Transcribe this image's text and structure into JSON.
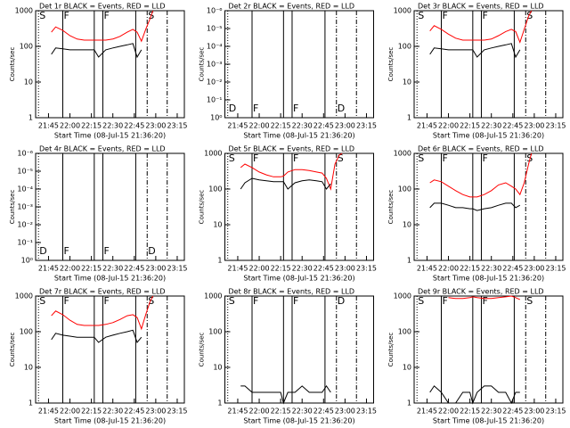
{
  "chart_data": [
    {
      "type": "line",
      "title": "Det 1r BLACK = Events, RED = LLD",
      "xlabel": "Start Time (08-Jul-15 21:36:20)",
      "ylabel": "Counts/sec",
      "log_y": true,
      "x": [
        "21:47",
        "21:50",
        "21:55",
        "22:00",
        "22:05",
        "22:10",
        "22:15",
        "22:17",
        "22:20",
        "22:25",
        "22:30",
        "22:35",
        "22:40",
        "22:44",
        "22:47",
        "22:50",
        "22:53",
        "22:56",
        "22:58"
      ],
      "series": [
        {
          "name": "LLD",
          "color": "#ff0000",
          "values": [
            250,
            350,
            280,
            200,
            160,
            150,
            150,
            150,
            150,
            150,
            160,
            190,
            250,
            300,
            250,
            140,
            300,
            600,
            1000
          ]
        },
        {
          "name": "Events",
          "color": "#000000",
          "values": [
            60,
            90,
            85,
            80,
            80,
            80,
            80,
            80,
            50,
            80,
            90,
            100,
            110,
            120,
            50,
            80,
            null,
            null,
            null
          ]
        }
      ],
      "xlim": [
        "21:36",
        "23:20"
      ],
      "xticks": [
        "21:45",
        "22:00",
        "22:15",
        "22:30",
        "22:45",
        "23:00",
        "23:15"
      ],
      "ylim": [
        1,
        1000
      ],
      "yticks": [
        1,
        10,
        100,
        1000
      ],
      "events": [
        {
          "x": "21:38",
          "style": "dotted",
          "label": "S"
        },
        {
          "x": "21:55",
          "style": "solid",
          "label": "F"
        },
        {
          "x": "22:17",
          "style": "solid"
        },
        {
          "x": "22:23",
          "style": "solid",
          "label": "F"
        },
        {
          "x": "22:46",
          "style": "solid"
        },
        {
          "x": "22:54",
          "style": "dashdot",
          "label": "S"
        },
        {
          "x": "23:08",
          "style": "dashdot"
        }
      ]
    },
    {
      "type": "line",
      "title": "Det 2r BLACK = Events, RED = LLD",
      "xlabel": "Start Time (08-Jul-15 21:36:20)",
      "ylabel": "Counts/sec",
      "log_y": true,
      "x": [],
      "series": [],
      "xlim": [
        "21:36",
        "23:20"
      ],
      "xticks": [
        "21:45",
        "22:00",
        "22:15",
        "22:30",
        "22:45",
        "23:00",
        "23:15"
      ],
      "ylim": [
        1,
        1e-06
      ],
      "yticks": [
        {
          "value": 1,
          "label": "10⁰"
        },
        {
          "value": 0.1,
          "label": "10⁻¹"
        },
        {
          "value": 0.01,
          "label": "10⁻²"
        },
        {
          "value": 0.001,
          "label": "10⁻³"
        },
        {
          "value": 0.0001,
          "label": "10⁻⁴"
        },
        {
          "value": 1e-05,
          "label": "10⁻⁵"
        },
        {
          "value": 1e-06,
          "label": "10⁻⁶"
        }
      ],
      "events": [
        {
          "x": "21:38",
          "style": "dotted",
          "label": "D"
        },
        {
          "x": "21:55",
          "style": "solid",
          "label": "F"
        },
        {
          "x": "22:17",
          "style": "solid"
        },
        {
          "x": "22:23",
          "style": "solid",
          "label": "F"
        },
        {
          "x": "22:46",
          "style": "solid"
        },
        {
          "x": "22:54",
          "style": "dashdot",
          "label": "D"
        },
        {
          "x": "23:08",
          "style": "dashdot"
        }
      ]
    },
    {
      "type": "line",
      "title": "Det 3r BLACK = Events, RED = LLD",
      "xlabel": "Start Time (08-Jul-15 21:36:20)",
      "ylabel": "Counts/sec",
      "log_y": true,
      "x": [
        "21:47",
        "21:50",
        "21:55",
        "22:00",
        "22:05",
        "22:10",
        "22:15",
        "22:17",
        "22:20",
        "22:25",
        "22:30",
        "22:35",
        "22:40",
        "22:44",
        "22:47",
        "22:50",
        "22:53",
        "22:56",
        "22:58"
      ],
      "series": [
        {
          "name": "LLD",
          "color": "#ff0000",
          "values": [
            270,
            380,
            300,
            220,
            170,
            150,
            150,
            150,
            150,
            150,
            160,
            200,
            260,
            300,
            260,
            130,
            300,
            700,
            1000
          ]
        },
        {
          "name": "Events",
          "color": "#000000",
          "values": [
            60,
            90,
            85,
            80,
            80,
            80,
            80,
            80,
            50,
            80,
            90,
            100,
            110,
            120,
            50,
            80,
            null,
            null,
            null
          ]
        }
      ],
      "xlim": [
        "21:36",
        "23:20"
      ],
      "xticks": [
        "21:45",
        "22:00",
        "22:15",
        "22:30",
        "22:45",
        "23:00",
        "23:15"
      ],
      "ylim": [
        1,
        1000
      ],
      "yticks": [
        1,
        10,
        100,
        1000
      ],
      "events": [
        {
          "x": "21:38",
          "style": "dotted",
          "label": "S"
        },
        {
          "x": "21:55",
          "style": "solid",
          "label": "F"
        },
        {
          "x": "22:17",
          "style": "solid"
        },
        {
          "x": "22:23",
          "style": "solid",
          "label": "F"
        },
        {
          "x": "22:46",
          "style": "solid"
        },
        {
          "x": "22:54",
          "style": "dashdot",
          "label": "S"
        },
        {
          "x": "23:08",
          "style": "dashdot"
        }
      ]
    },
    {
      "type": "line",
      "title": "Det 4r BLACK = Events, RED = LLD",
      "xlabel": "Start Time (08-Jul-15 21:36:20)",
      "ylabel": "Counts/sec",
      "log_y": true,
      "x": [],
      "series": [],
      "xlim": [
        "21:36",
        "23:20"
      ],
      "xticks": [
        "21:45",
        "22:00",
        "22:15",
        "22:30",
        "22:45",
        "23:00",
        "23:15"
      ],
      "ylim": [
        1,
        1e-06
      ],
      "yticks": [
        {
          "value": 1,
          "label": "10⁰"
        },
        {
          "value": 0.1,
          "label": "10⁻¹"
        },
        {
          "value": 0.01,
          "label": "10⁻²"
        },
        {
          "value": 0.001,
          "label": "10⁻³"
        },
        {
          "value": 0.0001,
          "label": "10⁻⁴"
        },
        {
          "value": 1e-05,
          "label": "10⁻⁵"
        },
        {
          "value": 1e-06,
          "label": "10⁻⁶"
        }
      ],
      "events": [
        {
          "x": "21:38",
          "style": "dotted",
          "label": "D"
        },
        {
          "x": "21:55",
          "style": "solid",
          "label": "F"
        },
        {
          "x": "22:17",
          "style": "solid"
        },
        {
          "x": "22:23",
          "style": "solid",
          "label": "F"
        },
        {
          "x": "22:46",
          "style": "solid"
        },
        {
          "x": "22:54",
          "style": "dashdot",
          "label": "D"
        },
        {
          "x": "23:08",
          "style": "dashdot"
        }
      ]
    },
    {
      "type": "line",
      "title": "Det 5r BLACK = Events, RED = LLD",
      "xlabel": "Start Time (08-Jul-15 21:36:20)",
      "ylabel": "Counts/sec",
      "log_y": true,
      "x": [
        "21:47",
        "21:50",
        "21:55",
        "22:00",
        "22:05",
        "22:10",
        "22:15",
        "22:17",
        "22:20",
        "22:25",
        "22:30",
        "22:35",
        "22:40",
        "22:44",
        "22:47",
        "22:50",
        "22:53",
        "22:56",
        "22:58"
      ],
      "series": [
        {
          "name": "LLD",
          "color": "#ff0000",
          "values": [
            400,
            500,
            400,
            300,
            250,
            220,
            220,
            230,
            300,
            350,
            350,
            330,
            300,
            280,
            200,
            100,
            500,
            900,
            1000
          ]
        },
        {
          "name": "Events",
          "color": "#000000",
          "values": [
            100,
            150,
            200,
            180,
            170,
            160,
            160,
            160,
            100,
            150,
            170,
            180,
            170,
            160,
            100,
            140,
            null,
            null,
            null
          ]
        }
      ],
      "xlim": [
        "21:36",
        "23:20"
      ],
      "xticks": [
        "21:45",
        "22:00",
        "22:15",
        "22:30",
        "22:45",
        "23:00",
        "23:15"
      ],
      "ylim": [
        1,
        1000
      ],
      "yticks": [
        1,
        10,
        100,
        1000
      ],
      "events": [
        {
          "x": "21:38",
          "style": "dotted",
          "label": "S"
        },
        {
          "x": "21:55",
          "style": "solid",
          "label": "F"
        },
        {
          "x": "22:17",
          "style": "solid"
        },
        {
          "x": "22:23",
          "style": "solid",
          "label": "F"
        },
        {
          "x": "22:46",
          "style": "solid"
        },
        {
          "x": "22:54",
          "style": "dashdot",
          "label": "S"
        },
        {
          "x": "23:08",
          "style": "dashdot"
        }
      ]
    },
    {
      "type": "line",
      "title": "Det 6r BLACK = Events, RED = LLD",
      "xlabel": "Start Time (08-Jul-15 21:36:20)",
      "ylabel": "Counts/sec",
      "log_y": true,
      "x": [
        "21:47",
        "21:50",
        "21:55",
        "22:00",
        "22:05",
        "22:10",
        "22:15",
        "22:17",
        "22:20",
        "22:25",
        "22:30",
        "22:35",
        "22:40",
        "22:44",
        "22:47",
        "22:50",
        "22:53",
        "22:56",
        "22:58"
      ],
      "series": [
        {
          "name": "LLD",
          "color": "#ff0000",
          "values": [
            150,
            180,
            160,
            120,
            90,
            70,
            60,
            60,
            60,
            70,
            90,
            130,
            150,
            120,
            100,
            70,
            150,
            500,
            1000
          ]
        },
        {
          "name": "Events",
          "color": "#000000",
          "values": [
            30,
            40,
            40,
            35,
            30,
            30,
            28,
            28,
            25,
            28,
            30,
            35,
            40,
            40,
            30,
            35,
            null,
            null,
            null
          ]
        }
      ],
      "xlim": [
        "21:36",
        "23:20"
      ],
      "xticks": [
        "21:45",
        "22:00",
        "22:15",
        "22:30",
        "22:45",
        "23:00",
        "23:15"
      ],
      "ylim": [
        1,
        1000
      ],
      "yticks": [
        1,
        10,
        100,
        1000
      ],
      "events": [
        {
          "x": "21:38",
          "style": "dotted",
          "label": "S"
        },
        {
          "x": "21:55",
          "style": "solid",
          "label": "F"
        },
        {
          "x": "22:17",
          "style": "solid"
        },
        {
          "x": "22:23",
          "style": "solid",
          "label": "F"
        },
        {
          "x": "22:46",
          "style": "solid"
        },
        {
          "x": "22:54",
          "style": "dashdot",
          "label": "S"
        },
        {
          "x": "23:08",
          "style": "dashdot"
        }
      ]
    },
    {
      "type": "line",
      "title": "Det 7r BLACK = Events, RED = LLD",
      "xlabel": "Start Time (08-Jul-15 21:36:20)",
      "ylabel": "Counts/sec",
      "log_y": true,
      "x": [
        "21:47",
        "21:50",
        "21:55",
        "22:00",
        "22:05",
        "22:10",
        "22:15",
        "22:17",
        "22:20",
        "22:25",
        "22:30",
        "22:35",
        "22:40",
        "22:44",
        "22:47",
        "22:50",
        "22:53",
        "22:56",
        "22:58"
      ],
      "series": [
        {
          "name": "LLD",
          "color": "#ff0000",
          "values": [
            280,
            380,
            300,
            210,
            160,
            150,
            150,
            150,
            150,
            160,
            180,
            220,
            280,
            300,
            250,
            120,
            300,
            700,
            1000
          ]
        },
        {
          "name": "Events",
          "color": "#000000",
          "values": [
            60,
            90,
            80,
            75,
            70,
            70,
            70,
            70,
            50,
            70,
            80,
            90,
            100,
            110,
            50,
            70,
            null,
            null,
            null
          ]
        }
      ],
      "xlim": [
        "21:36",
        "23:20"
      ],
      "xticks": [
        "21:45",
        "22:00",
        "22:15",
        "22:30",
        "22:45",
        "23:00",
        "23:15"
      ],
      "ylim": [
        1,
        1000
      ],
      "yticks": [
        1,
        10,
        100,
        1000
      ],
      "events": [
        {
          "x": "21:38",
          "style": "dotted",
          "label": "S"
        },
        {
          "x": "21:55",
          "style": "solid",
          "label": "F"
        },
        {
          "x": "22:17",
          "style": "solid"
        },
        {
          "x": "22:23",
          "style": "solid",
          "label": "F"
        },
        {
          "x": "22:46",
          "style": "solid"
        },
        {
          "x": "22:54",
          "style": "dashdot",
          "label": "S"
        },
        {
          "x": "23:08",
          "style": "dashdot"
        }
      ]
    },
    {
      "type": "line",
      "title": "Det 8r BLACK = Events, RED = LLD",
      "xlabel": "Start Time (08-Jul-15 21:36:20)",
      "ylabel": "Counts/sec",
      "log_y": true,
      "x": [
        "21:47",
        "21:50",
        "21:55",
        "22:00",
        "22:05",
        "22:10",
        "22:15",
        "22:17",
        "22:20",
        "22:25",
        "22:30",
        "22:35",
        "22:40",
        "22:44",
        "22:47",
        "22:50",
        "22:53",
        "22:56",
        "22:58"
      ],
      "series": [
        {
          "name": "Events",
          "color": "#000000",
          "values": [
            3,
            3,
            2,
            2,
            2,
            2,
            2,
            1,
            2,
            2,
            3,
            2,
            2,
            2,
            3,
            2,
            null,
            null,
            null
          ]
        }
      ],
      "xlim": [
        "21:36",
        "23:20"
      ],
      "xticks": [
        "21:45",
        "22:00",
        "22:15",
        "22:30",
        "22:45",
        "23:00",
        "23:15"
      ],
      "ylim": [
        1,
        1000
      ],
      "yticks": [
        1,
        10,
        100,
        1000
      ],
      "events": [
        {
          "x": "21:38",
          "style": "dotted",
          "label": "S"
        },
        {
          "x": "21:55",
          "style": "solid",
          "label": "F"
        },
        {
          "x": "22:17",
          "style": "solid"
        },
        {
          "x": "22:23",
          "style": "solid",
          "label": "F"
        },
        {
          "x": "22:46",
          "style": "solid"
        },
        {
          "x": "22:54",
          "style": "dashdot",
          "label": "D"
        },
        {
          "x": "23:08",
          "style": "dashdot"
        }
      ]
    },
    {
      "type": "line",
      "title": "Det 9r BLACK = Events, RED = LLD",
      "xlabel": "Start Time (08-Jul-15 21:36:20)",
      "ylabel": "Counts/sec",
      "log_y": true,
      "x": [
        "21:47",
        "21:50",
        "21:55",
        "22:00",
        "22:05",
        "22:10",
        "22:15",
        "22:17",
        "22:20",
        "22:25",
        "22:30",
        "22:35",
        "22:40",
        "22:44",
        "22:47",
        "22:50",
        "22:53",
        "22:56",
        "22:58"
      ],
      "series": [
        {
          "name": "LLD",
          "color": "#ff0000",
          "values": [
            null,
            null,
            null,
            900,
            850,
            850,
            900,
            950,
            900,
            850,
            850,
            900,
            950,
            1000,
            900,
            800,
            null,
            null,
            null
          ]
        },
        {
          "name": "Events",
          "color": "#000000",
          "values": [
            2,
            3,
            2,
            1,
            1,
            2,
            2,
            1,
            2,
            3,
            3,
            2,
            2,
            1,
            2,
            2,
            null,
            null,
            null
          ]
        }
      ],
      "xlim": [
        "21:36",
        "23:20"
      ],
      "xticks": [
        "21:45",
        "22:00",
        "22:15",
        "22:30",
        "22:45",
        "23:00",
        "23:15"
      ],
      "ylim": [
        1,
        1000
      ],
      "yticks": [
        1,
        10,
        100,
        1000
      ],
      "events": [
        {
          "x": "21:38",
          "style": "dotted",
          "label": "S"
        },
        {
          "x": "21:55",
          "style": "solid",
          "label": "F"
        },
        {
          "x": "22:17",
          "style": "solid"
        },
        {
          "x": "22:23",
          "style": "solid",
          "label": "F"
        },
        {
          "x": "22:46",
          "style": "solid"
        },
        {
          "x": "22:54",
          "style": "dashdot",
          "label": "S"
        },
        {
          "x": "23:08",
          "style": "dashdot"
        }
      ]
    }
  ]
}
